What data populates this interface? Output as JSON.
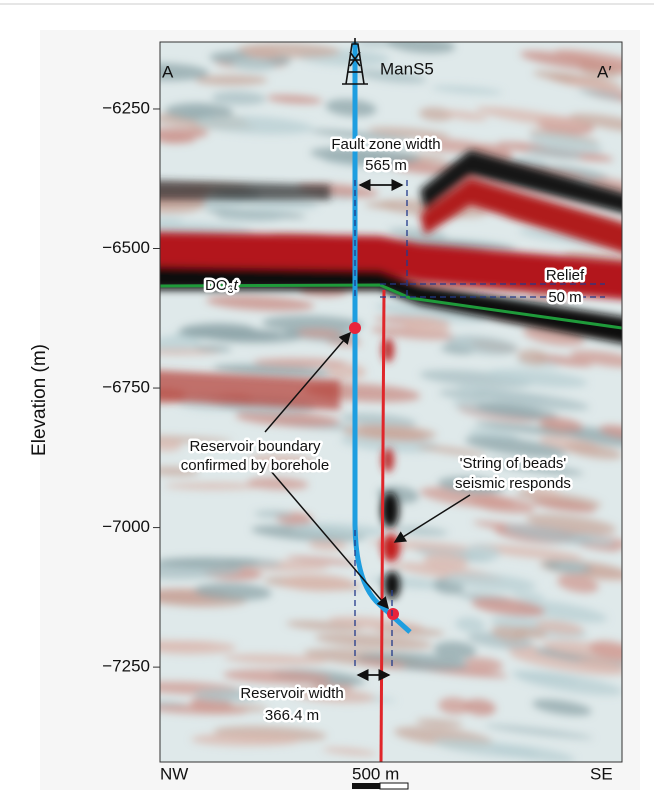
{
  "chart_data": {
    "type": "seismic-section",
    "y_label": "Elevation (m)",
    "ylim": [
      -7420,
      -6130
    ],
    "yticks": [
      {
        "value": -6250,
        "label": "−6250"
      },
      {
        "value": -6500,
        "label": "−6500"
      },
      {
        "value": -6750,
        "label": "−6750"
      },
      {
        "value": -7000,
        "label": "−7000"
      },
      {
        "value": -7250,
        "label": "−7250"
      }
    ],
    "well": "ManS5",
    "section_start": "A",
    "section_end": "A′",
    "left_direction": "NW",
    "right_direction": "SE",
    "scale_bar": "500 m",
    "fault_zone": [
      "Fault zone width",
      "565 m"
    ],
    "horizon": {
      "base": "DO",
      "subscript": "3",
      "suffix": "t"
    },
    "relief": [
      "Relief",
      "50 m"
    ],
    "reservoir_boundary": [
      "Reservoir boundary",
      "confirmed by borehole"
    ],
    "beads": [
      "'String of beads'",
      "seismic responds"
    ],
    "reservoir_width": [
      "Reservoir width",
      "366.4 m"
    ]
  }
}
